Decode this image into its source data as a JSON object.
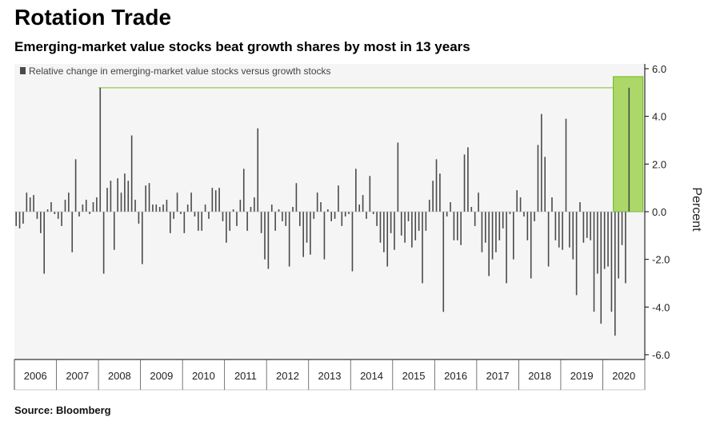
{
  "header": {
    "title": "Rotation Trade",
    "subtitle": "Emerging-market value stocks beat growth shares by most in 13 years"
  },
  "footer": {
    "source": "Source: Bloomberg"
  },
  "colors": {
    "bar": "#4a4a4a",
    "highlight_fill": "#9ed24f",
    "highlight_stroke": "#7cbf2a",
    "reference_line": "#7cbf2a",
    "plot_background": "#f5f5f5",
    "frame": "#000000"
  },
  "chart_data": {
    "type": "bar",
    "legend": [
      "Relative change in emerging-market value stocks versus growth stocks"
    ],
    "legend_position": "top-left",
    "ylabel": "Percent",
    "ylim": [
      -6.2,
      6.2
    ],
    "y_ticks": [
      6.0,
      4.0,
      2.0,
      0.0,
      -2.0,
      -4.0,
      -6.0
    ],
    "y_tick_labels": [
      "6.0",
      "4.0",
      "2.0",
      "0.0",
      "-2.0",
      "-4.0",
      "-6.0"
    ],
    "x_year_labels": [
      "2006",
      "2007",
      "2008",
      "2009",
      "2010",
      "2011",
      "2012",
      "2013",
      "2014",
      "2015",
      "2016",
      "2017",
      "2018",
      "2019",
      "2020"
    ],
    "x_start": "2006-01",
    "x_end": "2020-11",
    "grid": false,
    "reference_line_y": 5.2,
    "highlight": {
      "from": "2020-04",
      "to": "2020-11"
    },
    "series": [
      {
        "name": "Relative change in emerging-market value stocks versus growth stocks",
        "values": [
          -0.6,
          -0.7,
          -0.5,
          0.8,
          0.6,
          0.7,
          -0.3,
          -0.9,
          -2.6,
          0.1,
          0.4,
          -0.1,
          -0.3,
          -0.6,
          0.5,
          0.8,
          -1.7,
          2.2,
          -0.2,
          0.3,
          0.5,
          -0.1,
          0.4,
          0.6,
          5.2,
          -2.6,
          1.0,
          1.3,
          -1.6,
          1.4,
          0.8,
          1.6,
          1.3,
          3.2,
          0.5,
          -0.5,
          -2.2,
          1.1,
          1.2,
          0.3,
          0.3,
          0.2,
          0.3,
          0.5,
          -0.9,
          -0.3,
          0.8,
          -0.1,
          -0.9,
          0.3,
          0.8,
          -0.2,
          -0.8,
          -0.8,
          0.3,
          -0.3,
          1.0,
          0.9,
          1.0,
          -0.4,
          -1.3,
          -0.8,
          0.1,
          -0.6,
          0.5,
          1.8,
          -0.8,
          0.2,
          0.6,
          3.5,
          -0.9,
          -2.0,
          -2.4,
          0.3,
          -0.8,
          0.1,
          -0.4,
          -0.6,
          -2.3,
          0.2,
          1.2,
          -0.6,
          -1.9,
          -1.3,
          -1.8,
          -0.3,
          0.8,
          0.4,
          -2.0,
          0.1,
          -0.4,
          -0.3,
          1.1,
          -0.6,
          -0.2,
          -0.1,
          -2.5,
          1.8,
          0.3,
          0.7,
          -0.3,
          1.5,
          -0.1,
          -0.6,
          -1.3,
          -1.7,
          -2.3,
          -0.9,
          -1.6,
          2.9,
          -1.0,
          -1.3,
          -0.4,
          -1.5,
          -1.2,
          -0.8,
          -3.0,
          -0.8,
          0.5,
          1.3,
          2.2,
          1.6,
          -4.2,
          -0.2,
          0.4,
          -1.2,
          -1.2,
          -1.4,
          2.4,
          2.7,
          0.2,
          -0.6,
          0.8,
          -1.7,
          -1.3,
          -2.7,
          -2.0,
          -1.7,
          -1.2,
          -0.7,
          -3.0,
          -0.1,
          -2.0,
          0.9,
          0.6,
          -0.2,
          -1.2,
          -2.8,
          -0.4,
          2.8,
          4.1,
          2.3,
          -2.3,
          0.6,
          -1.2,
          -1.5,
          -1.6,
          3.9,
          -1.5,
          -2.0,
          -3.5,
          0.4,
          -1.3,
          -1.1,
          -1.2,
          -4.2,
          -2.6,
          -4.7,
          -2.4,
          -2.3,
          -4.2,
          -5.2,
          -2.8,
          -1.4,
          -3.0,
          5.2
        ]
      }
    ]
  }
}
